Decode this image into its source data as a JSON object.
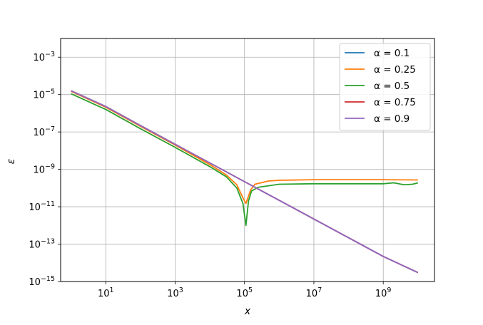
{
  "chart_data": {
    "type": "line",
    "title": "",
    "xlabel": "x",
    "ylabel": "ε",
    "xscale": "log",
    "yscale": "log",
    "xlim": [
      0.5,
      30000000000
    ],
    "ylim": [
      1e-15,
      0.01
    ],
    "x_ticks": [
      10,
      1000,
      100000,
      10000000,
      1000000000
    ],
    "x_tick_labels": [
      {
        "base": "10",
        "exp": "1"
      },
      {
        "base": "10",
        "exp": "3"
      },
      {
        "base": "10",
        "exp": "5"
      },
      {
        "base": "10",
        "exp": "7"
      },
      {
        "base": "10",
        "exp": "9"
      }
    ],
    "y_ticks": [
      1e-15,
      1e-13,
      1e-11,
      1e-09,
      1e-07,
      1e-05,
      0.001
    ],
    "y_tick_labels": [
      {
        "base": "10",
        "exp": "−15"
      },
      {
        "base": "10",
        "exp": "−13"
      },
      {
        "base": "10",
        "exp": "−11"
      },
      {
        "base": "10",
        "exp": "−9"
      },
      {
        "base": "10",
        "exp": "−7"
      },
      {
        "base": "10",
        "exp": "−5"
      },
      {
        "base": "10",
        "exp": "−3"
      }
    ],
    "grid": true,
    "legend_position": "top-right",
    "series": [
      {
        "name": "α = 0.1",
        "color": "#1f77b4",
        "points": [
          [
            1,
            1.6e-05
          ],
          [
            10,
            2.3e-06
          ],
          [
            100,
            2.2e-07
          ],
          [
            1000,
            2.2e-08
          ],
          [
            10000,
            2.2e-09
          ],
          [
            100000,
            2.2e-10
          ],
          [
            1000000,
            2.2e-11
          ],
          [
            10000000,
            2.2e-12
          ],
          [
            100000000,
            2.2e-13
          ],
          [
            1000000000,
            2.2e-14
          ],
          [
            10000000000,
            3e-15
          ]
        ]
      },
      {
        "name": "α = 0.25",
        "color": "#ff7f0e",
        "points": [
          [
            1,
            1.5e-05
          ],
          [
            10,
            2.1e-06
          ],
          [
            100,
            2e-07
          ],
          [
            1000,
            2e-08
          ],
          [
            10000,
            1.8e-09
          ],
          [
            30000,
            5e-10
          ],
          [
            60000,
            1.5e-10
          ],
          [
            90000,
            3e-11
          ],
          [
            110000,
            1.5e-11
          ],
          [
            150000,
            8e-11
          ],
          [
            200000,
            1.6e-10
          ],
          [
            500000,
            2.4e-10
          ],
          [
            1000000,
            2.6e-10
          ],
          [
            10000000,
            2.8e-10
          ],
          [
            100000000,
            2.8e-10
          ],
          [
            1000000000,
            2.8e-10
          ],
          [
            10000000000,
            2.7e-10
          ]
        ]
      },
      {
        "name": "α = 0.5",
        "color": "#2ca02c",
        "points": [
          [
            1,
            1.1e-05
          ],
          [
            10,
            1.6e-06
          ],
          [
            100,
            1.5e-07
          ],
          [
            1000,
            1.5e-08
          ],
          [
            10000,
            1.4e-09
          ],
          [
            30000,
            4e-10
          ],
          [
            60000,
            1e-10
          ],
          [
            90000,
            1.5e-11
          ],
          [
            110000,
            1e-12
          ],
          [
            130000,
            2e-11
          ],
          [
            160000,
            7e-11
          ],
          [
            250000,
            1.1e-10
          ],
          [
            1000000,
            1.6e-10
          ],
          [
            10000000,
            1.7e-10
          ],
          [
            100000000,
            1.7e-10
          ],
          [
            1000000000,
            1.7e-10
          ],
          [
            2000000000,
            1.9e-10
          ],
          [
            4000000000,
            1.5e-10
          ],
          [
            7000000000,
            1.6e-10
          ],
          [
            10000000000,
            1.9e-10
          ]
        ]
      },
      {
        "name": "α = 0.75",
        "color": "#d62728",
        "points": [
          [
            1,
            1.6e-05
          ],
          [
            10,
            2.3e-06
          ],
          [
            100,
            2.2e-07
          ],
          [
            1000,
            2.2e-08
          ],
          [
            10000,
            2.2e-09
          ],
          [
            100000,
            2.2e-10
          ],
          [
            1000000,
            2.2e-11
          ],
          [
            10000000,
            2.2e-12
          ],
          [
            100000000,
            2.2e-13
          ],
          [
            1000000000,
            2.2e-14
          ],
          [
            10000000000,
            3e-15
          ]
        ]
      },
      {
        "name": "α = 0.9",
        "color": "#9467bd",
        "points": [
          [
            1,
            1.6e-05
          ],
          [
            10,
            2.3e-06
          ],
          [
            100,
            2.2e-07
          ],
          [
            1000,
            2.2e-08
          ],
          [
            10000,
            2.2e-09
          ],
          [
            100000,
            2.2e-10
          ],
          [
            1000000,
            2.2e-11
          ],
          [
            10000000,
            2.2e-12
          ],
          [
            100000000,
            2.2e-13
          ],
          [
            1000000000,
            2.2e-14
          ],
          [
            10000000000,
            3e-15
          ]
        ]
      }
    ]
  }
}
